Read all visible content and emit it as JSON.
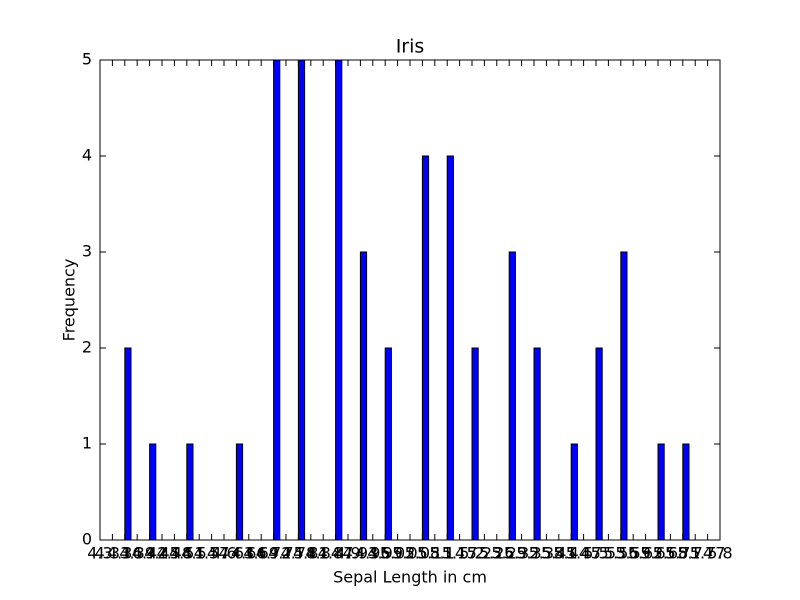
{
  "chart_data": {
    "type": "histogram",
    "title": "Iris",
    "xlabel": "Sepal Length in cm",
    "ylabel": "Frequency",
    "bins": [
      4.3,
      4.33,
      4.36,
      4.39,
      4.42,
      4.45,
      4.48,
      4.51,
      4.54,
      4.57,
      4.6,
      4.63,
      4.66,
      4.69,
      4.72,
      4.75,
      4.78,
      4.81,
      4.84,
      4.87,
      4.9,
      4.93,
      4.96,
      4.99,
      5.02,
      5.05,
      5.08,
      5.11,
      5.14,
      5.17,
      5.2,
      5.23,
      5.26,
      5.29,
      5.32,
      5.35,
      5.38,
      5.41,
      5.44,
      5.47,
      5.5,
      5.53,
      5.56,
      5.59,
      5.62,
      5.65,
      5.68,
      5.71,
      5.74,
      5.77,
      5.8
    ],
    "values": [
      0,
      0,
      2,
      0,
      1,
      0,
      0,
      1,
      0,
      0,
      0,
      1,
      0,
      0,
      5,
      0,
      5,
      0,
      0,
      5,
      0,
      3,
      0,
      2,
      0,
      0,
      4,
      0,
      4,
      0,
      2,
      0,
      0,
      3,
      0,
      2,
      0,
      0,
      1,
      0,
      2,
      0,
      3,
      0,
      0,
      1,
      0,
      1,
      0,
      0
    ],
    "color": "#0000ff",
    "xlim": [
      4.3,
      5.8
    ],
    "xticks": [
      4.3,
      4.33,
      4.36,
      4.39,
      4.42,
      4.45,
      4.48,
      4.51,
      4.54,
      4.57,
      4.6,
      4.63,
      4.66,
      4.69,
      4.72,
      4.75,
      4.78,
      4.81,
      4.84,
      4.87,
      4.9,
      4.93,
      4.96,
      4.99,
      5.02,
      5.05,
      5.08,
      5.11,
      5.14,
      5.17,
      5.2,
      5.23,
      5.26,
      5.29,
      5.32,
      5.35,
      5.38,
      5.41,
      5.44,
      5.47,
      5.5,
      5.53,
      5.56,
      5.59,
      5.62,
      5.65,
      5.68,
      5.71,
      5.74,
      5.77,
      5.8
    ],
    "ylim": [
      0,
      5
    ],
    "yticks": [
      0,
      1,
      2,
      3,
      4,
      5
    ],
    "grid": false
  }
}
